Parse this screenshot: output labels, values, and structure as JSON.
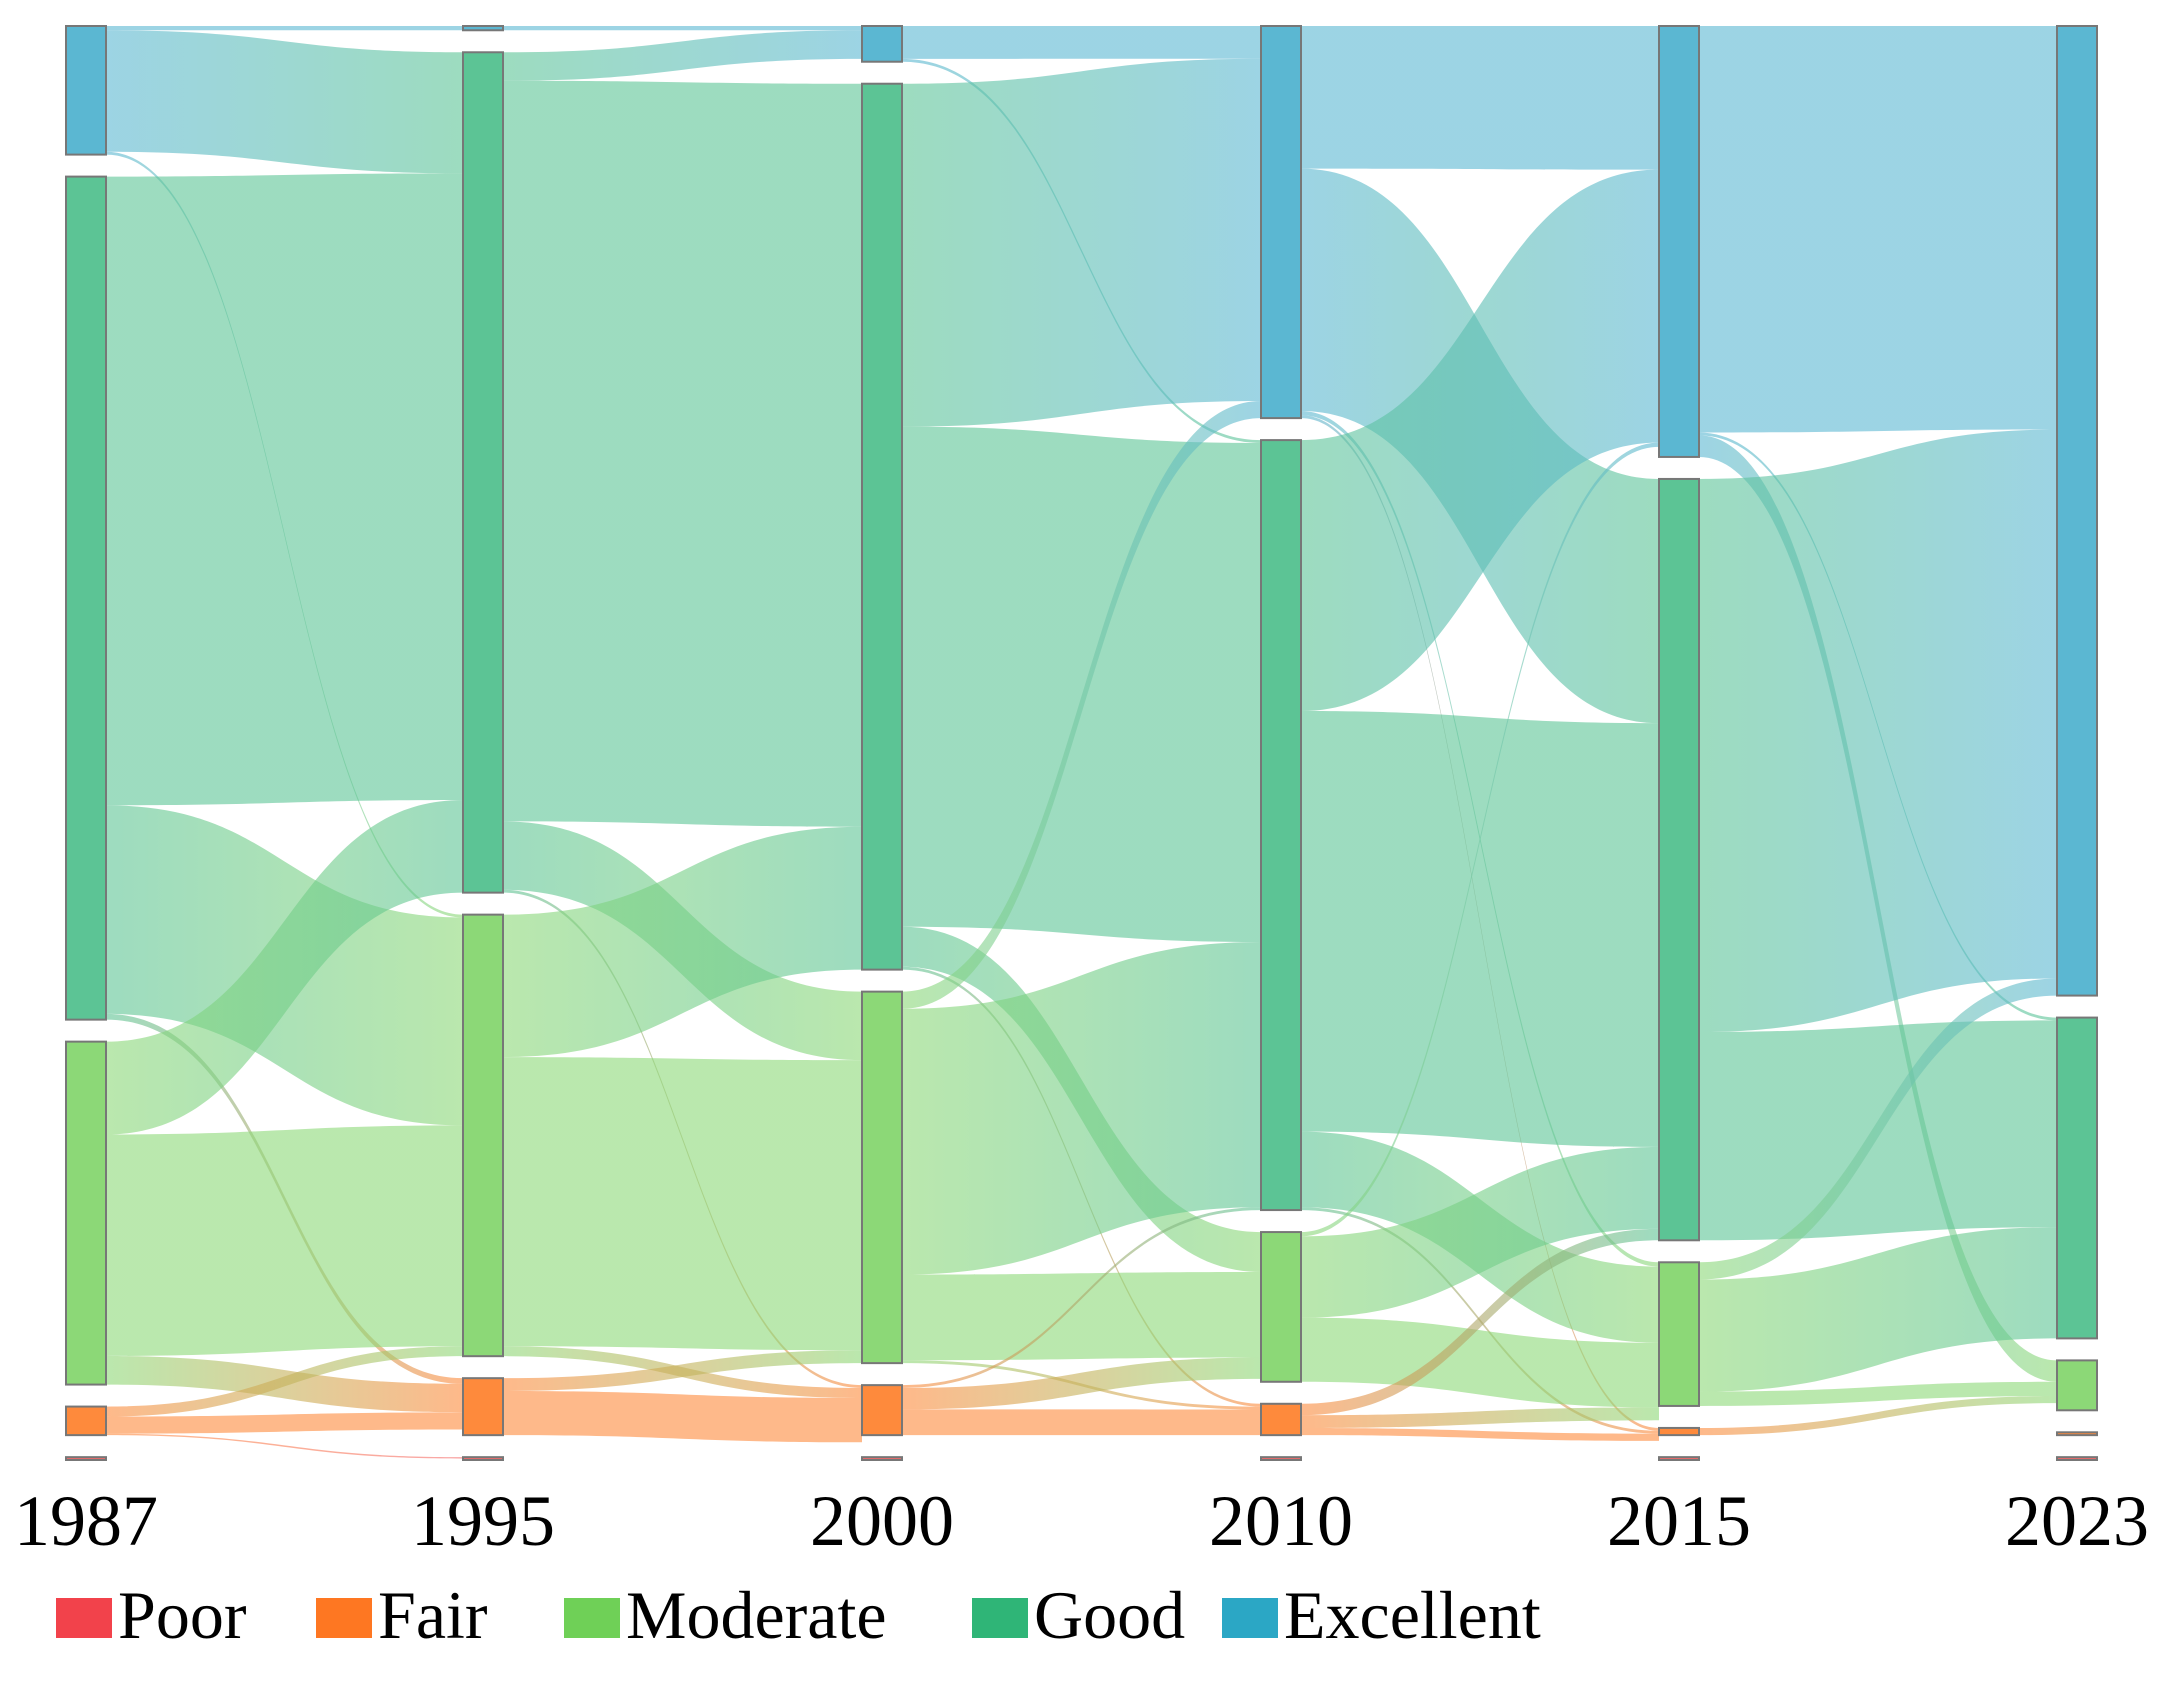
{
  "chart_data": {
    "type": "sankey",
    "title": "",
    "categories": [
      "Poor",
      "Fair",
      "Moderate",
      "Good",
      "Excellent"
    ],
    "category_colors": {
      "Poor": "#f2424b",
      "Fair": "#fe7722",
      "Moderate": "#6fd057",
      "Good": "#2fb577",
      "Excellent": "#2ba7c5"
    },
    "node_colors": {
      "Poor": "#f46b6b",
      "Fair": "#fe8a3c",
      "Moderate": "#8cd877",
      "Good": "#5cc495",
      "Excellent": "#5bb7d2"
    },
    "years": [
      "1987",
      "1995",
      "2000",
      "2010",
      "2015",
      "2023"
    ],
    "nodes": {
      "1987": {
        "Poor": 0.2,
        "Fair": 2,
        "Moderate": 24,
        "Good": 59,
        "Excellent": 9
      },
      "1995": {
        "Poor": 0.2,
        "Fair": 4,
        "Moderate": 31,
        "Good": 59,
        "Excellent": 0.3
      },
      "2000": {
        "Poor": 0.2,
        "Fair": 3.5,
        "Moderate": 26,
        "Good": 62,
        "Excellent": 2.5
      },
      "2010": {
        "Poor": 0.2,
        "Fair": 2.2,
        "Moderate": 10.5,
        "Good": 54,
        "Excellent": 27.5
      },
      "2015": {
        "Poor": 0.2,
        "Fair": 0.5,
        "Moderate": 10,
        "Good": 53,
        "Excellent": 30
      },
      "2023": {
        "Poor": 0.2,
        "Fair": 0.2,
        "Moderate": 3.5,
        "Good": 22.5,
        "Excellent": 68
      }
    },
    "flows": [
      {
        "from_year": "1987",
        "source": "Excellent",
        "target": "Excellent",
        "value": 0.3
      },
      {
        "from_year": "1987",
        "source": "Excellent",
        "target": "Good",
        "value": 8.5
      },
      {
        "from_year": "1987",
        "source": "Excellent",
        "target": "Moderate",
        "value": 0.2
      },
      {
        "from_year": "1987",
        "source": "Good",
        "target": "Good",
        "value": 44
      },
      {
        "from_year": "1987",
        "source": "Good",
        "target": "Moderate",
        "value": 14.6
      },
      {
        "from_year": "1987",
        "source": "Good",
        "target": "Fair",
        "value": 0.4
      },
      {
        "from_year": "1987",
        "source": "Moderate",
        "target": "Good",
        "value": 6.5
      },
      {
        "from_year": "1987",
        "source": "Moderate",
        "target": "Moderate",
        "value": 15.5
      },
      {
        "from_year": "1987",
        "source": "Moderate",
        "target": "Fair",
        "value": 2
      },
      {
        "from_year": "1987",
        "source": "Fair",
        "target": "Moderate",
        "value": 0.7
      },
      {
        "from_year": "1987",
        "source": "Fair",
        "target": "Fair",
        "value": 1.2
      },
      {
        "from_year": "1987",
        "source": "Fair",
        "target": "Poor",
        "value": 0.1
      },
      {
        "from_year": "1995",
        "source": "Excellent",
        "target": "Excellent",
        "value": 0.3
      },
      {
        "from_year": "1995",
        "source": "Good",
        "target": "Excellent",
        "value": 2
      },
      {
        "from_year": "1995",
        "source": "Good",
        "target": "Good",
        "value": 52
      },
      {
        "from_year": "1995",
        "source": "Good",
        "target": "Moderate",
        "value": 4.8
      },
      {
        "from_year": "1995",
        "source": "Good",
        "target": "Fair",
        "value": 0.2
      },
      {
        "from_year": "1995",
        "source": "Moderate",
        "target": "Good",
        "value": 10
      },
      {
        "from_year": "1995",
        "source": "Moderate",
        "target": "Moderate",
        "value": 20.3
      },
      {
        "from_year": "1995",
        "source": "Moderate",
        "target": "Fair",
        "value": 0.7
      },
      {
        "from_year": "1995",
        "source": "Fair",
        "target": "Moderate",
        "value": 0.9
      },
      {
        "from_year": "1995",
        "source": "Fair",
        "target": "Fair",
        "value": 3.1
      },
      {
        "from_year": "2000",
        "source": "Excellent",
        "target": "Excellent",
        "value": 2.3
      },
      {
        "from_year": "2000",
        "source": "Excellent",
        "target": "Good",
        "value": 0.2
      },
      {
        "from_year": "2000",
        "source": "Good",
        "target": "Excellent",
        "value": 24
      },
      {
        "from_year": "2000",
        "source": "Good",
        "target": "Good",
        "value": 35
      },
      {
        "from_year": "2000",
        "source": "Good",
        "target": "Moderate",
        "value": 2.8
      },
      {
        "from_year": "2000",
        "source": "Good",
        "target": "Fair",
        "value": 0.2
      },
      {
        "from_year": "2000",
        "source": "Moderate",
        "target": "Excellent",
        "value": 1.2
      },
      {
        "from_year": "2000",
        "source": "Moderate",
        "target": "Good",
        "value": 18.6
      },
      {
        "from_year": "2000",
        "source": "Moderate",
        "target": "Moderate",
        "value": 6
      },
      {
        "from_year": "2000",
        "source": "Moderate",
        "target": "Fair",
        "value": 0.2
      },
      {
        "from_year": "2000",
        "source": "Fair",
        "target": "Good",
        "value": 0.2
      },
      {
        "from_year": "2000",
        "source": "Fair",
        "target": "Moderate",
        "value": 1.5
      },
      {
        "from_year": "2000",
        "source": "Fair",
        "target": "Fair",
        "value": 1.8
      },
      {
        "from_year": "2010",
        "source": "Excellent",
        "target": "Excellent",
        "value": 10
      },
      {
        "from_year": "2010",
        "source": "Excellent",
        "target": "Good",
        "value": 17
      },
      {
        "from_year": "2010",
        "source": "Excellent",
        "target": "Moderate",
        "value": 0.3
      },
      {
        "from_year": "2010",
        "source": "Excellent",
        "target": "Fair",
        "value": 0.2
      },
      {
        "from_year": "2010",
        "source": "Good",
        "target": "Excellent",
        "value": 19
      },
      {
        "from_year": "2010",
        "source": "Good",
        "target": "Good",
        "value": 29.5
      },
      {
        "from_year": "2010",
        "source": "Good",
        "target": "Moderate",
        "value": 5.3
      },
      {
        "from_year": "2010",
        "source": "Good",
        "target": "Fair",
        "value": 0.2
      },
      {
        "from_year": "2010",
        "source": "Moderate",
        "target": "Excellent",
        "value": 0.3
      },
      {
        "from_year": "2010",
        "source": "Moderate",
        "target": "Good",
        "value": 5.7
      },
      {
        "from_year": "2010",
        "source": "Moderate",
        "target": "Moderate",
        "value": 4.5
      },
      {
        "from_year": "2010",
        "source": "Fair",
        "target": "Good",
        "value": 0.8
      },
      {
        "from_year": "2010",
        "source": "Fair",
        "target": "Moderate",
        "value": 0.9
      },
      {
        "from_year": "2010",
        "source": "Fair",
        "target": "Fair",
        "value": 0.5
      },
      {
        "from_year": "2015",
        "source": "Excellent",
        "target": "Excellent",
        "value": 28.3
      },
      {
        "from_year": "2015",
        "source": "Excellent",
        "target": "Good",
        "value": 0.2
      },
      {
        "from_year": "2015",
        "source": "Excellent",
        "target": "Moderate",
        "value": 1.5
      },
      {
        "from_year": "2015",
        "source": "Good",
        "target": "Excellent",
        "value": 38.5
      },
      {
        "from_year": "2015",
        "source": "Good",
        "target": "Good",
        "value": 14.5
      },
      {
        "from_year": "2015",
        "source": "Moderate",
        "target": "Excellent",
        "value": 1.2
      },
      {
        "from_year": "2015",
        "source": "Moderate",
        "target": "Good",
        "value": 7.8
      },
      {
        "from_year": "2015",
        "source": "Moderate",
        "target": "Moderate",
        "value": 1
      },
      {
        "from_year": "2015",
        "source": "Fair",
        "target": "Moderate",
        "value": 0.5
      }
    ]
  },
  "legend": [
    {
      "label": "Poor",
      "color": "#f2424b"
    },
    {
      "label": "Fair",
      "color": "#fe7722"
    },
    {
      "label": "Moderate",
      "color": "#6fd057"
    },
    {
      "label": "Good",
      "color": "#2fb577"
    },
    {
      "label": "Excellent",
      "color": "#2ba7c5"
    }
  ]
}
